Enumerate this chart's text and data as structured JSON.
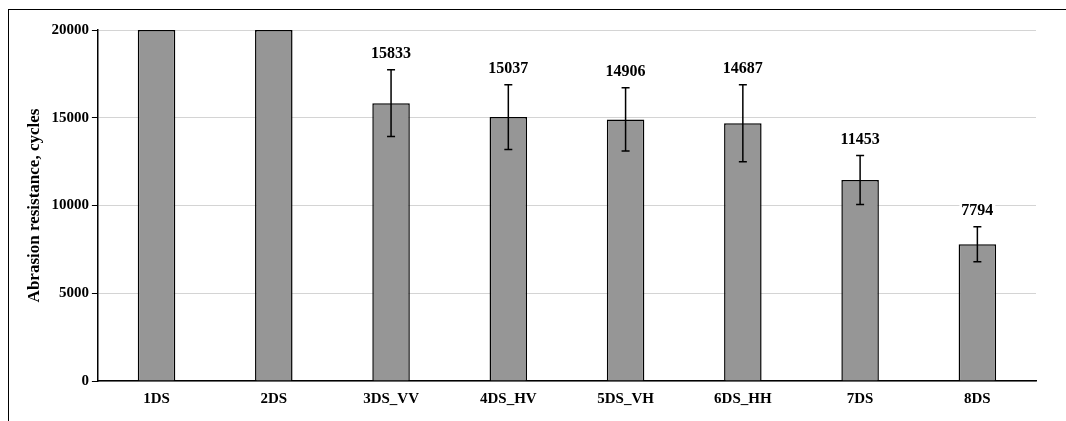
{
  "chart_data": {
    "type": "bar",
    "ylabel": "Abrasion resistance, cycles",
    "categories": [
      "1DS",
      "2DS",
      "3DS_VV",
      "4DS_HV",
      "5DS_VH",
      "6DS_HH",
      "7DS",
      "8DS"
    ],
    "values": [
      20000,
      20000,
      15833,
      15037,
      14906,
      14687,
      11453,
      7794
    ],
    "errors": [
      null,
      null,
      1900,
      1850,
      1800,
      2200,
      1400,
      1000
    ],
    "value_labels": [
      null,
      null,
      "15833",
      "15037",
      "14906",
      "14687",
      "11453",
      "7794"
    ],
    "color": "#969696",
    "ylim": [
      0,
      20000
    ],
    "yticks": [
      0,
      5000,
      10000,
      15000,
      20000
    ],
    "grid": "y",
    "legend": false
  }
}
